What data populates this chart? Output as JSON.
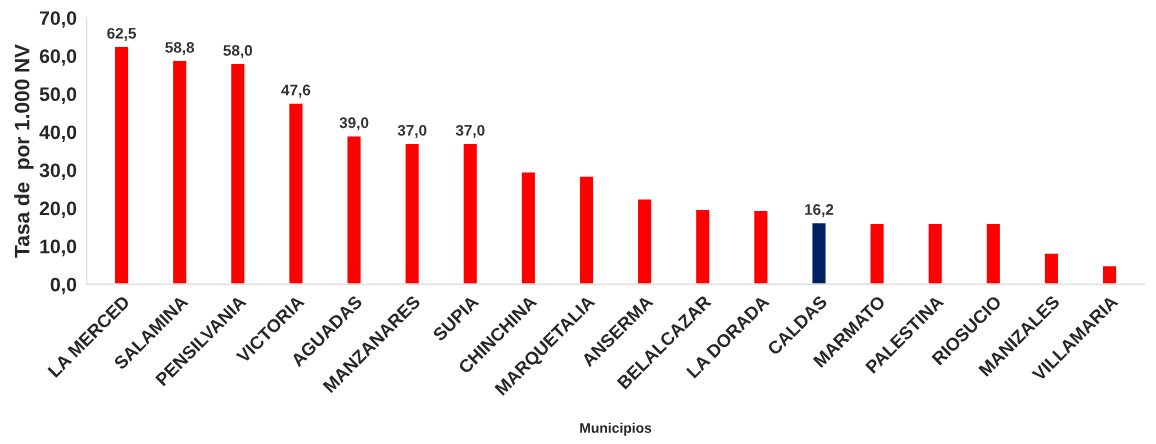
{
  "chart_data": {
    "type": "bar",
    "xlabel": "Municipios",
    "ylabel": "Tasa de  por 1.000 NV",
    "categories": [
      "LA MERCED",
      "SALAMINA",
      "PENSILVANIA",
      "VICTORIA",
      "AGUADAS",
      "MANZANARES",
      "SUPIA",
      "CHINCHINA",
      "MARQUETALIA",
      "ANSERMA",
      "BELALCAZAR",
      "LA DORADA",
      "CALDAS",
      "MARMATO",
      "PALESTINA",
      "RIOSUCIO",
      "MANIZALES",
      "VILLAMARIA"
    ],
    "values": [
      62.5,
      58.8,
      58.0,
      47.6,
      39.0,
      37.0,
      37.0,
      29.5,
      28.4,
      22.4,
      19.7,
      19.4,
      16.2,
      16.0,
      16.0,
      16.0,
      8.2,
      4.9
    ],
    "value_labels": [
      "62,5",
      "58,8",
      "58,0",
      "47,6",
      "39,0",
      "37,0",
      "37,0",
      null,
      null,
      null,
      null,
      null,
      "16,2",
      null,
      null,
      null,
      null,
      null
    ],
    "colors": [
      "#ff0000",
      "#ff0000",
      "#ff0000",
      "#ff0000",
      "#ff0000",
      "#ff0000",
      "#ff0000",
      "#ff0000",
      "#ff0000",
      "#ff0000",
      "#ff0000",
      "#ff0000",
      "#002060",
      "#ff0000",
      "#ff0000",
      "#ff0000",
      "#ff0000",
      "#ff0000"
    ],
    "ylim": [
      0,
      70
    ],
    "yticks": [
      {
        "value": 0,
        "label": "0,0"
      },
      {
        "value": 10,
        "label": "10,0"
      },
      {
        "value": 20,
        "label": "20,0"
      },
      {
        "value": 30,
        "label": "30,0"
      },
      {
        "value": 40,
        "label": "40,0"
      },
      {
        "value": 50,
        "label": "50,0"
      },
      {
        "value": 60,
        "label": "60,0"
      },
      {
        "value": 70,
        "label": "70,0"
      }
    ],
    "grid": false,
    "legend": false
  }
}
